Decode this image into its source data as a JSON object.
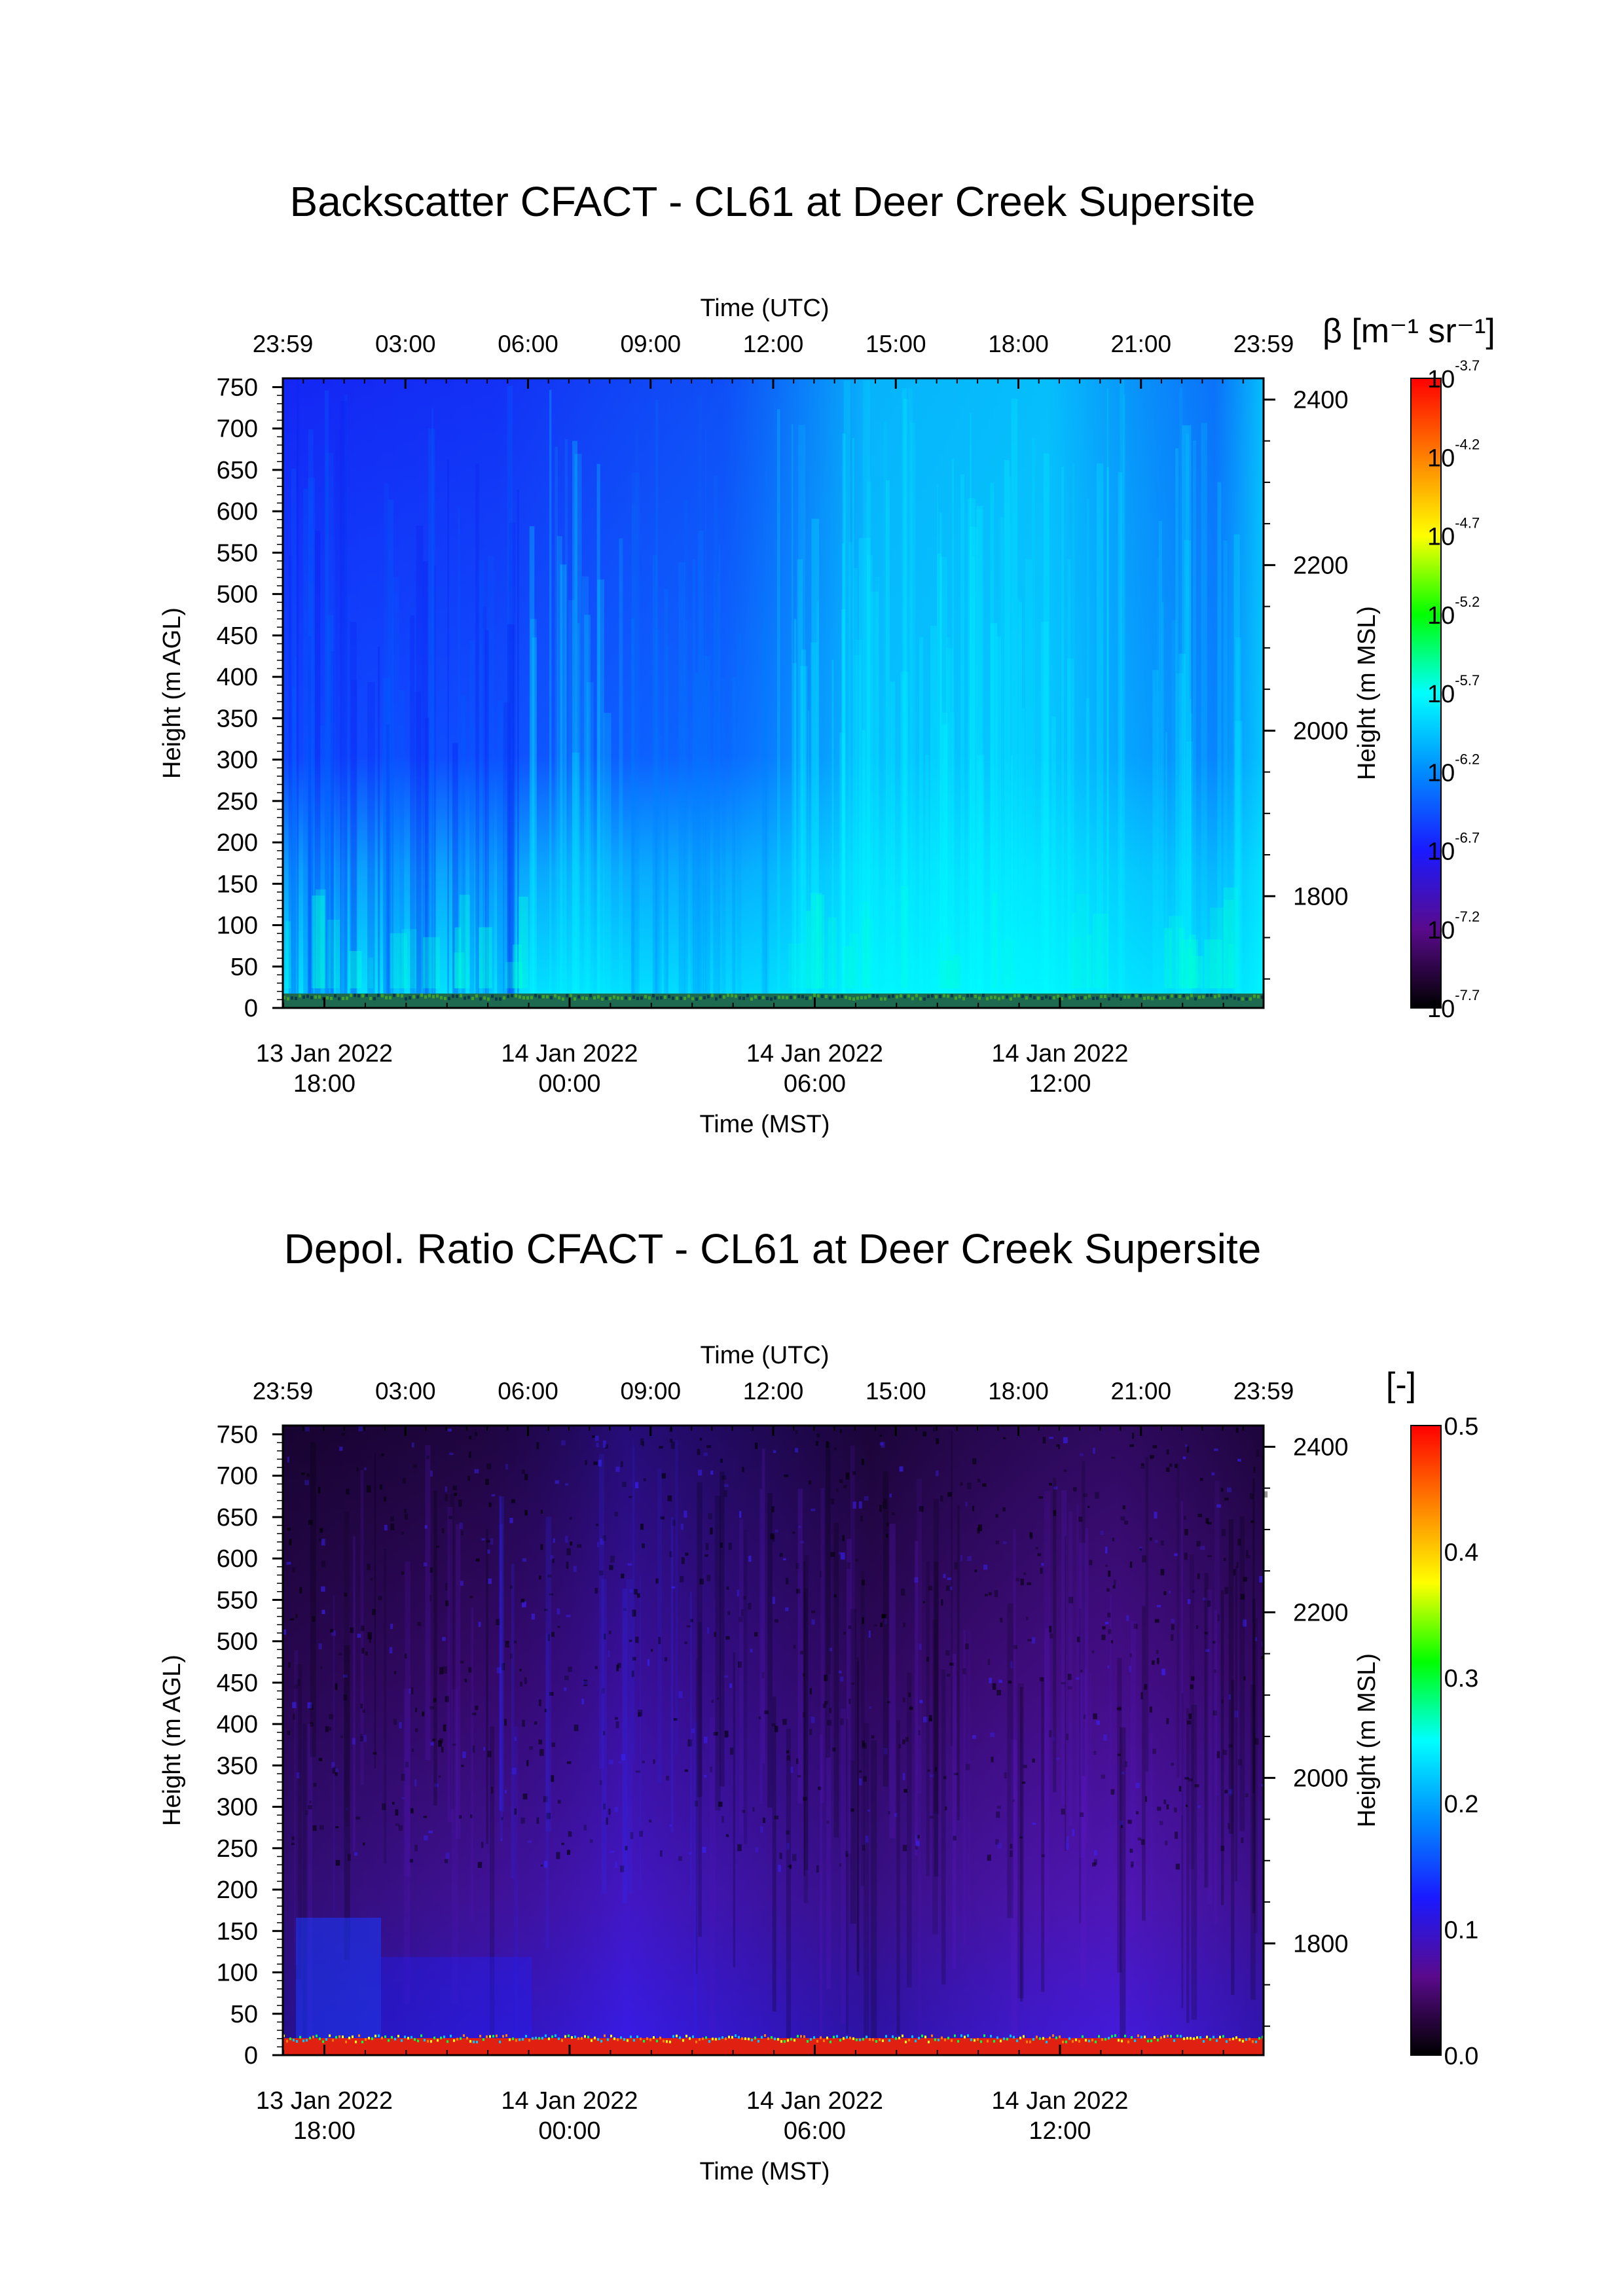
{
  "chart_data": [
    {
      "type": "heatmap",
      "title": "Backscatter CFACT - CL61 at Deer Creek Supersite",
      "top_axis": {
        "label": "Time (UTC)",
        "ticks": [
          "23:59",
          "03:00",
          "06:00",
          "09:00",
          "12:00",
          "15:00",
          "18:00",
          "21:00",
          "23:59"
        ]
      },
      "bottom_axis": {
        "label": "Time (MST)",
        "ticks": [
          {
            "date": "13 Jan 2022",
            "time": "18:00"
          },
          {
            "date": "14 Jan 2022",
            "time": "00:00"
          },
          {
            "date": "14 Jan 2022",
            "time": "06:00"
          },
          {
            "date": "14 Jan 2022",
            "time": "12:00"
          }
        ]
      },
      "left_axis": {
        "label": "Height (m AGL)",
        "ticks": [
          "0",
          "50",
          "100",
          "150",
          "200",
          "250",
          "300",
          "350",
          "400",
          "450",
          "500",
          "550",
          "600",
          "650",
          "700",
          "750"
        ],
        "range": [
          0,
          750
        ]
      },
      "right_axis": {
        "label": "Height (m MSL)",
        "ticks": [
          "1800",
          "2000",
          "2200",
          "2400"
        ]
      },
      "colorbar": {
        "label": "β [m⁻¹ sr⁻¹]",
        "scale": "log",
        "tick_exponents": [
          "-3.7",
          "-4.2",
          "-4.7",
          "-5.2",
          "-5.7",
          "-6.2",
          "-6.7",
          "-7.2",
          "-7.7"
        ],
        "range": [
          "1e-7.7",
          "1e-3.7"
        ],
        "colormap": [
          "#000000",
          "#5a0a8c",
          "#1a1aff",
          "#008cff",
          "#00ffff",
          "#00ff00",
          "#ffff00",
          "#ff8000",
          "#ff0000"
        ]
      },
      "pattern_description": "mostly blue (~1e-6.7) aloft; cyan (~1e-6.2) aerosol layer below ~150 m with deeper cyan layers mid-period; surface layer at 0 m"
    },
    {
      "type": "heatmap",
      "title": "Depol. Ratio CFACT - CL61 at Deer Creek Supersite",
      "top_axis": {
        "label": "Time (UTC)",
        "ticks": [
          "23:59",
          "03:00",
          "06:00",
          "09:00",
          "12:00",
          "15:00",
          "18:00",
          "21:00",
          "23:59"
        ]
      },
      "bottom_axis": {
        "label": "Time (MST)",
        "ticks": [
          {
            "date": "13 Jan 2022",
            "time": "18:00"
          },
          {
            "date": "14 Jan 2022",
            "time": "00:00"
          },
          {
            "date": "14 Jan 2022",
            "time": "06:00"
          },
          {
            "date": "14 Jan 2022",
            "time": "12:00"
          }
        ]
      },
      "left_axis": {
        "label": "Height (m AGL)",
        "ticks": [
          "0",
          "50",
          "100",
          "150",
          "200",
          "250",
          "300",
          "350",
          "400",
          "450",
          "500",
          "550",
          "600",
          "650",
          "700",
          "750"
        ],
        "range": [
          0,
          750
        ]
      },
      "right_axis": {
        "label": "Height (m MSL)",
        "ticks": [
          "1800",
          "2000",
          "2200",
          "2400"
        ]
      },
      "colorbar": {
        "label": "[-]",
        "scale": "linear",
        "ticks": [
          "0.0",
          "0.1",
          "0.2",
          "0.3",
          "0.4",
          "0.5"
        ],
        "range": [
          0.0,
          0.5
        ],
        "colormap": [
          "#000000",
          "#5a0a8c",
          "#1a1aff",
          "#008cff",
          "#00ffff",
          "#00ff00",
          "#ffff00",
          "#ff8000",
          "#ff0000"
        ]
      },
      "pattern_description": "mostly purple (~0.05) throughout; blue (~0.1) layer below ~150 m early period; red (0.5) surface layer at 0 m"
    }
  ]
}
